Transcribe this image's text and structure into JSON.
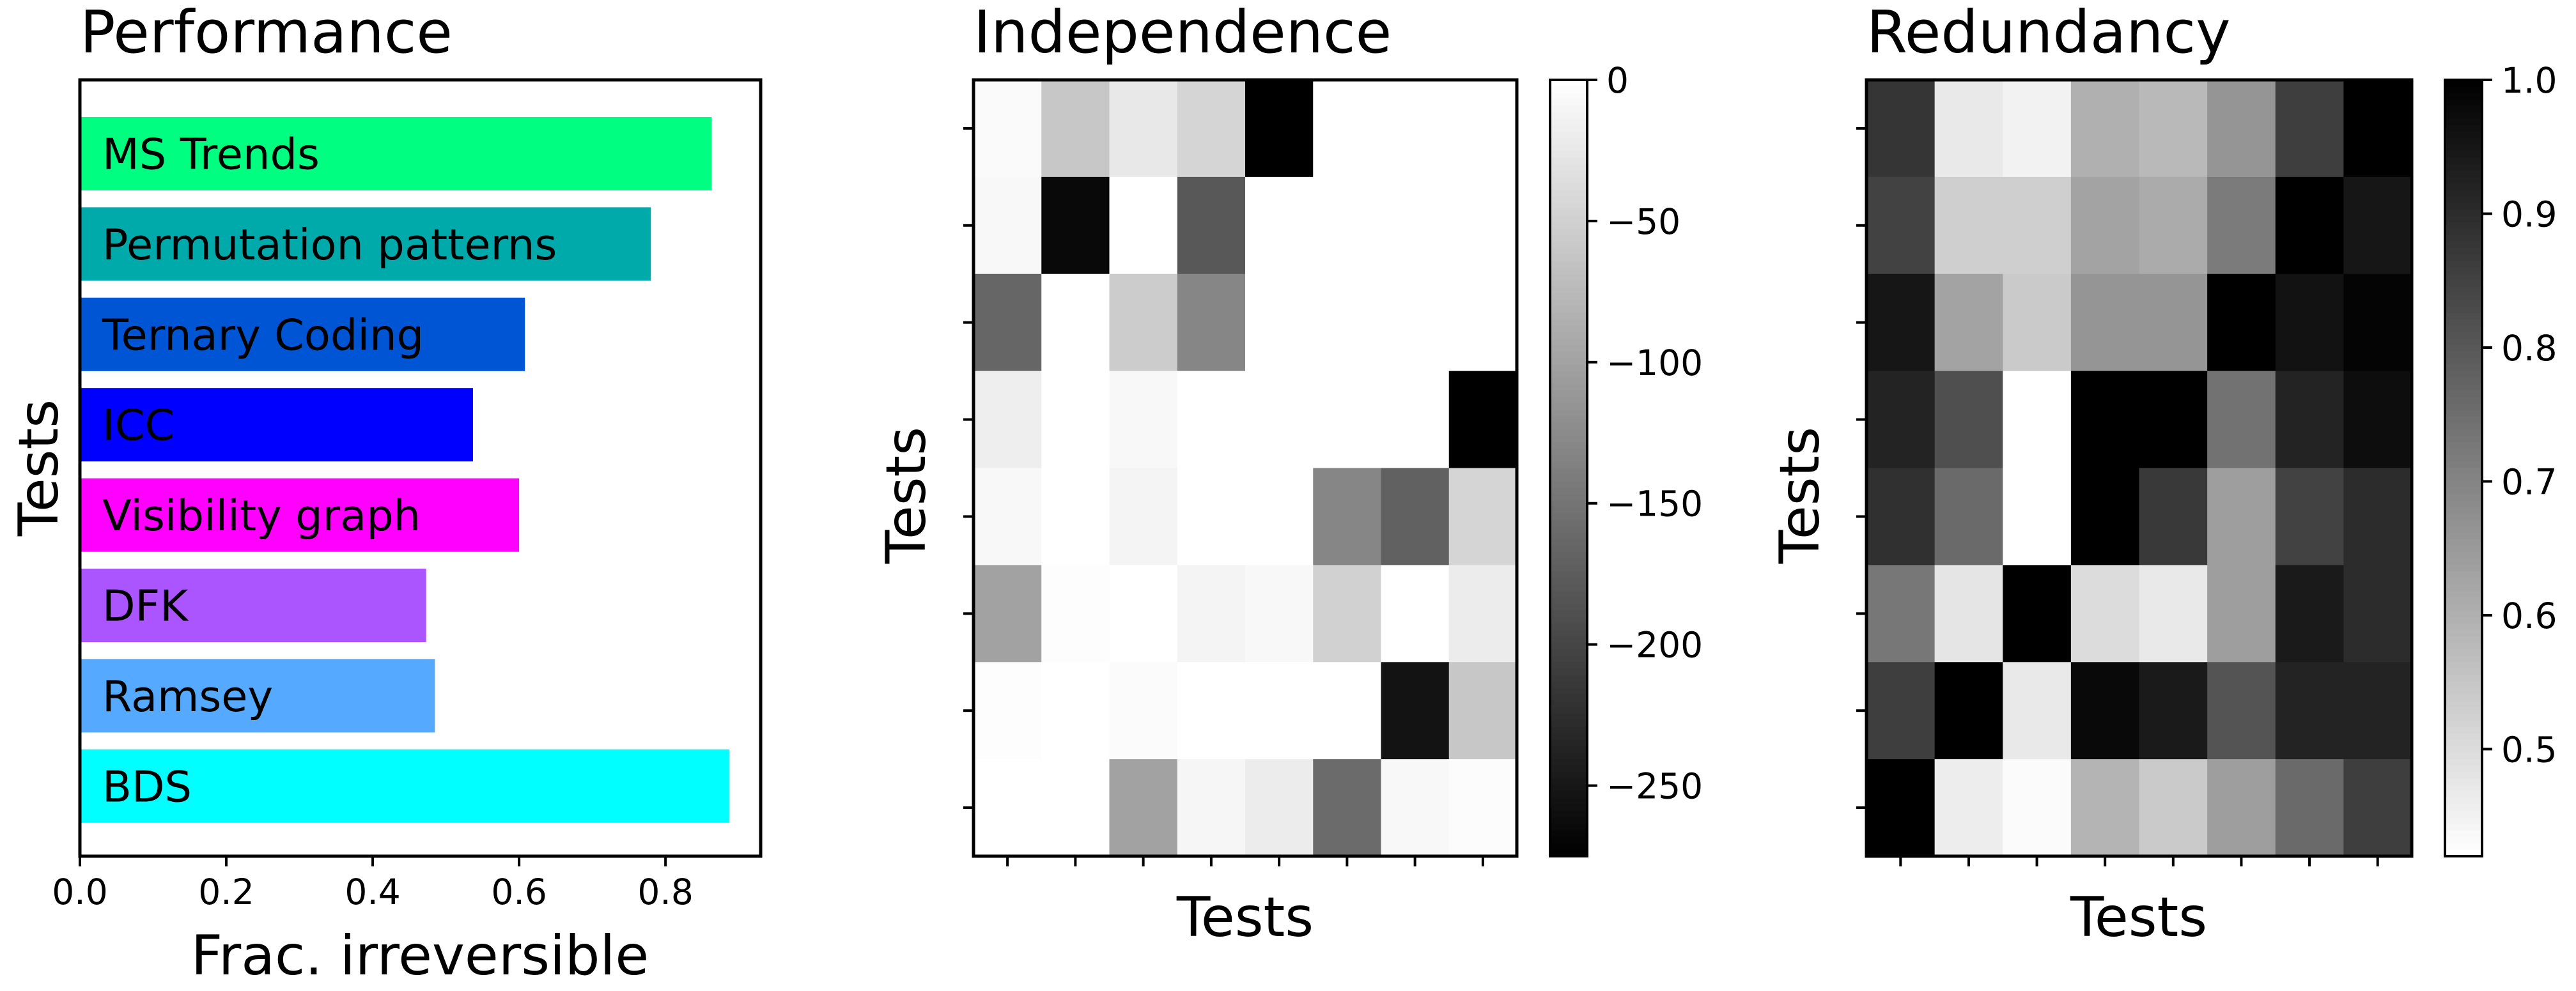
{
  "chart_data": [
    {
      "type": "bar",
      "orientation": "horizontal",
      "title": "Performance",
      "xlabel": "Frac. irreversible",
      "ylabel": "Tests",
      "xlim": [
        0,
        0.93
      ],
      "xticks": [
        "0.0",
        "0.2",
        "0.4",
        "0.6",
        "0.8"
      ],
      "grid": false,
      "bars": [
        {
          "label": "MS Trends",
          "value": 0.863,
          "color": "#00ff80"
        },
        {
          "label": "Permutation patterns",
          "value": 0.78,
          "color": "#00aaaa"
        },
        {
          "label": "Ternary Coding",
          "value": 0.608,
          "color": "#0055d4"
        },
        {
          "label": "ICC",
          "value": 0.537,
          "color": "#0000ff"
        },
        {
          "label": "Visibility graph",
          "value": 0.6,
          "color": "#ff00ff"
        },
        {
          "label": "DFK",
          "value": 0.473,
          "color": "#aa55ff"
        },
        {
          "label": "Ramsey",
          "value": 0.485,
          "color": "#55aaff"
        },
        {
          "label": "BDS",
          "value": 0.887,
          "color": "#00ffff"
        }
      ]
    },
    {
      "type": "heatmap",
      "title": "Independence",
      "xlabel": "Tests",
      "ylabel": "Tests",
      "colormap": "gray",
      "vmin": -275,
      "vmax": 0,
      "colorbar_ticks": [
        "0",
        "−50",
        "−100",
        "−150",
        "−200",
        "−250"
      ],
      "colorbar_tick_values": [
        0,
        -50,
        -100,
        -150,
        -200,
        -250
      ],
      "matrix": [
        [
          -5,
          -60,
          -25,
          -45,
          -275,
          0,
          0,
          0
        ],
        [
          -8,
          -265,
          0,
          -180,
          0,
          0,
          0,
          0
        ],
        [
          -165,
          0,
          -55,
          -130,
          0,
          0,
          0,
          0
        ],
        [
          -18,
          0,
          -8,
          0,
          0,
          0,
          0,
          -275
        ],
        [
          -8,
          0,
          -12,
          0,
          0,
          -130,
          -170,
          -45
        ],
        [
          -100,
          -2,
          0,
          -12,
          -8,
          -50,
          0,
          -20
        ],
        [
          -2,
          0,
          -4,
          0,
          0,
          0,
          -255,
          -60
        ],
        [
          0,
          0,
          -100,
          -10,
          -20,
          -160,
          -8,
          -3
        ]
      ]
    },
    {
      "type": "heatmap",
      "title": "Redundancy",
      "xlabel": "Tests",
      "ylabel": "Tests",
      "colormap": "gray_r",
      "vmin": 0.42,
      "vmax": 1.0,
      "colorbar_ticks": [
        "1.0",
        "0.9",
        "0.8",
        "0.7",
        "0.6",
        "0.5"
      ],
      "colorbar_tick_values": [
        1.0,
        0.9,
        0.8,
        0.7,
        0.6,
        0.5
      ],
      "matrix": [
        [
          0.88,
          0.47,
          0.45,
          0.6,
          0.58,
          0.66,
          0.86,
          1.0
        ],
        [
          0.85,
          0.53,
          0.53,
          0.63,
          0.61,
          0.72,
          1.0,
          0.95
        ],
        [
          0.95,
          0.63,
          0.54,
          0.66,
          0.66,
          1.0,
          0.96,
          0.99
        ],
        [
          0.92,
          0.82,
          0.42,
          1.0,
          1.0,
          0.74,
          0.92,
          0.97
        ],
        [
          0.89,
          0.76,
          0.42,
          1.0,
          0.87,
          0.64,
          0.85,
          0.9
        ],
        [
          0.73,
          0.48,
          1.0,
          0.5,
          0.47,
          0.64,
          0.94,
          0.9
        ],
        [
          0.86,
          1.0,
          0.47,
          0.98,
          0.94,
          0.81,
          0.92,
          0.92
        ],
        [
          1.0,
          0.46,
          0.43,
          0.59,
          0.54,
          0.64,
          0.76,
          0.86
        ]
      ]
    }
  ]
}
